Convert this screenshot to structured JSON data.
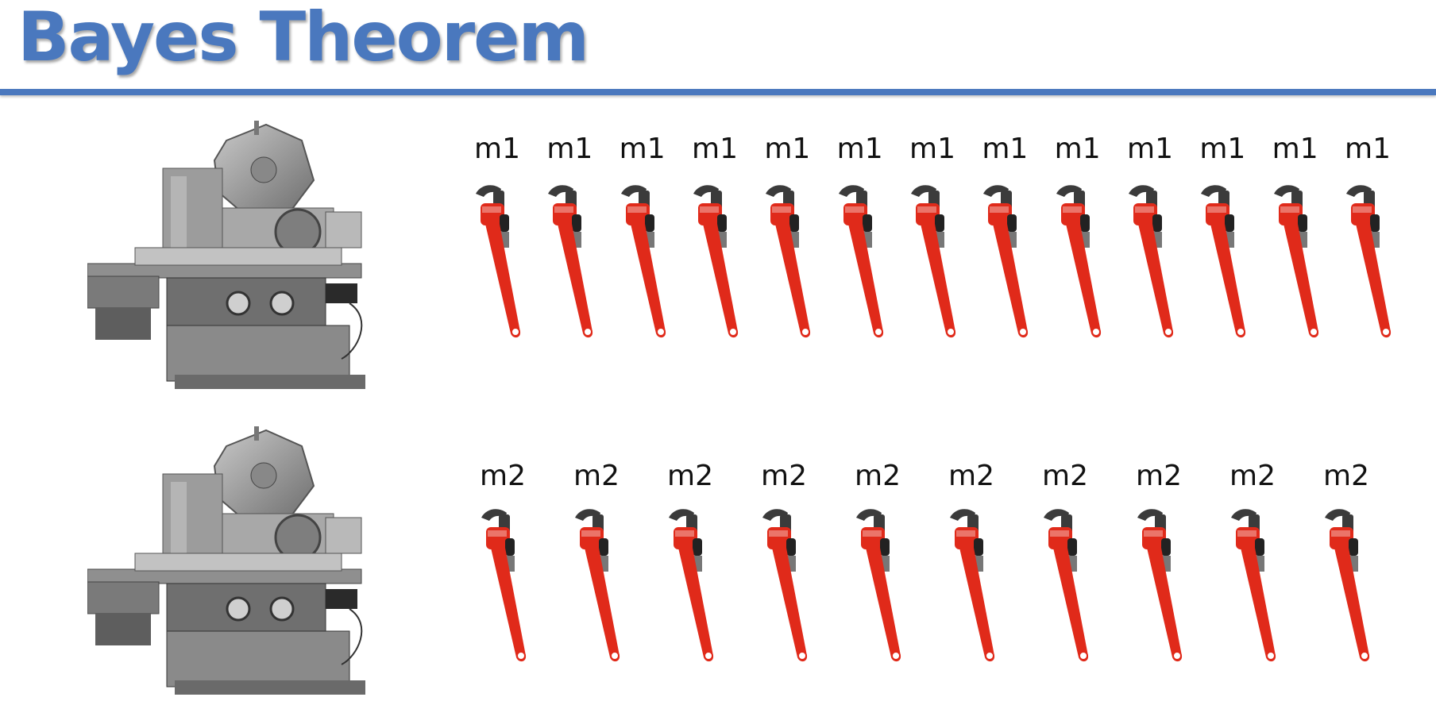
{
  "title": "Bayes Theorem",
  "colors": {
    "accent": "#4a78be",
    "wrench_red": "#e02a1a",
    "wrench_dark": "#3b3b3b"
  },
  "machines": [
    {
      "name": "milling-machine-m1",
      "icon": "milling-machine-icon"
    },
    {
      "name": "milling-machine-m2",
      "icon": "milling-machine-icon"
    }
  ],
  "rows": [
    {
      "machine": "m1",
      "icon": "pipe-wrench-icon",
      "labels": [
        "m1",
        "m1",
        "m1",
        "m1",
        "m1",
        "m1",
        "m1",
        "m1",
        "m1",
        "m1",
        "m1",
        "m1",
        "m1"
      ]
    },
    {
      "machine": "m2",
      "icon": "pipe-wrench-icon",
      "labels": [
        "m2",
        "m2",
        "m2",
        "m2",
        "m2",
        "m2",
        "m2",
        "m2",
        "m2",
        "m2"
      ]
    }
  ]
}
